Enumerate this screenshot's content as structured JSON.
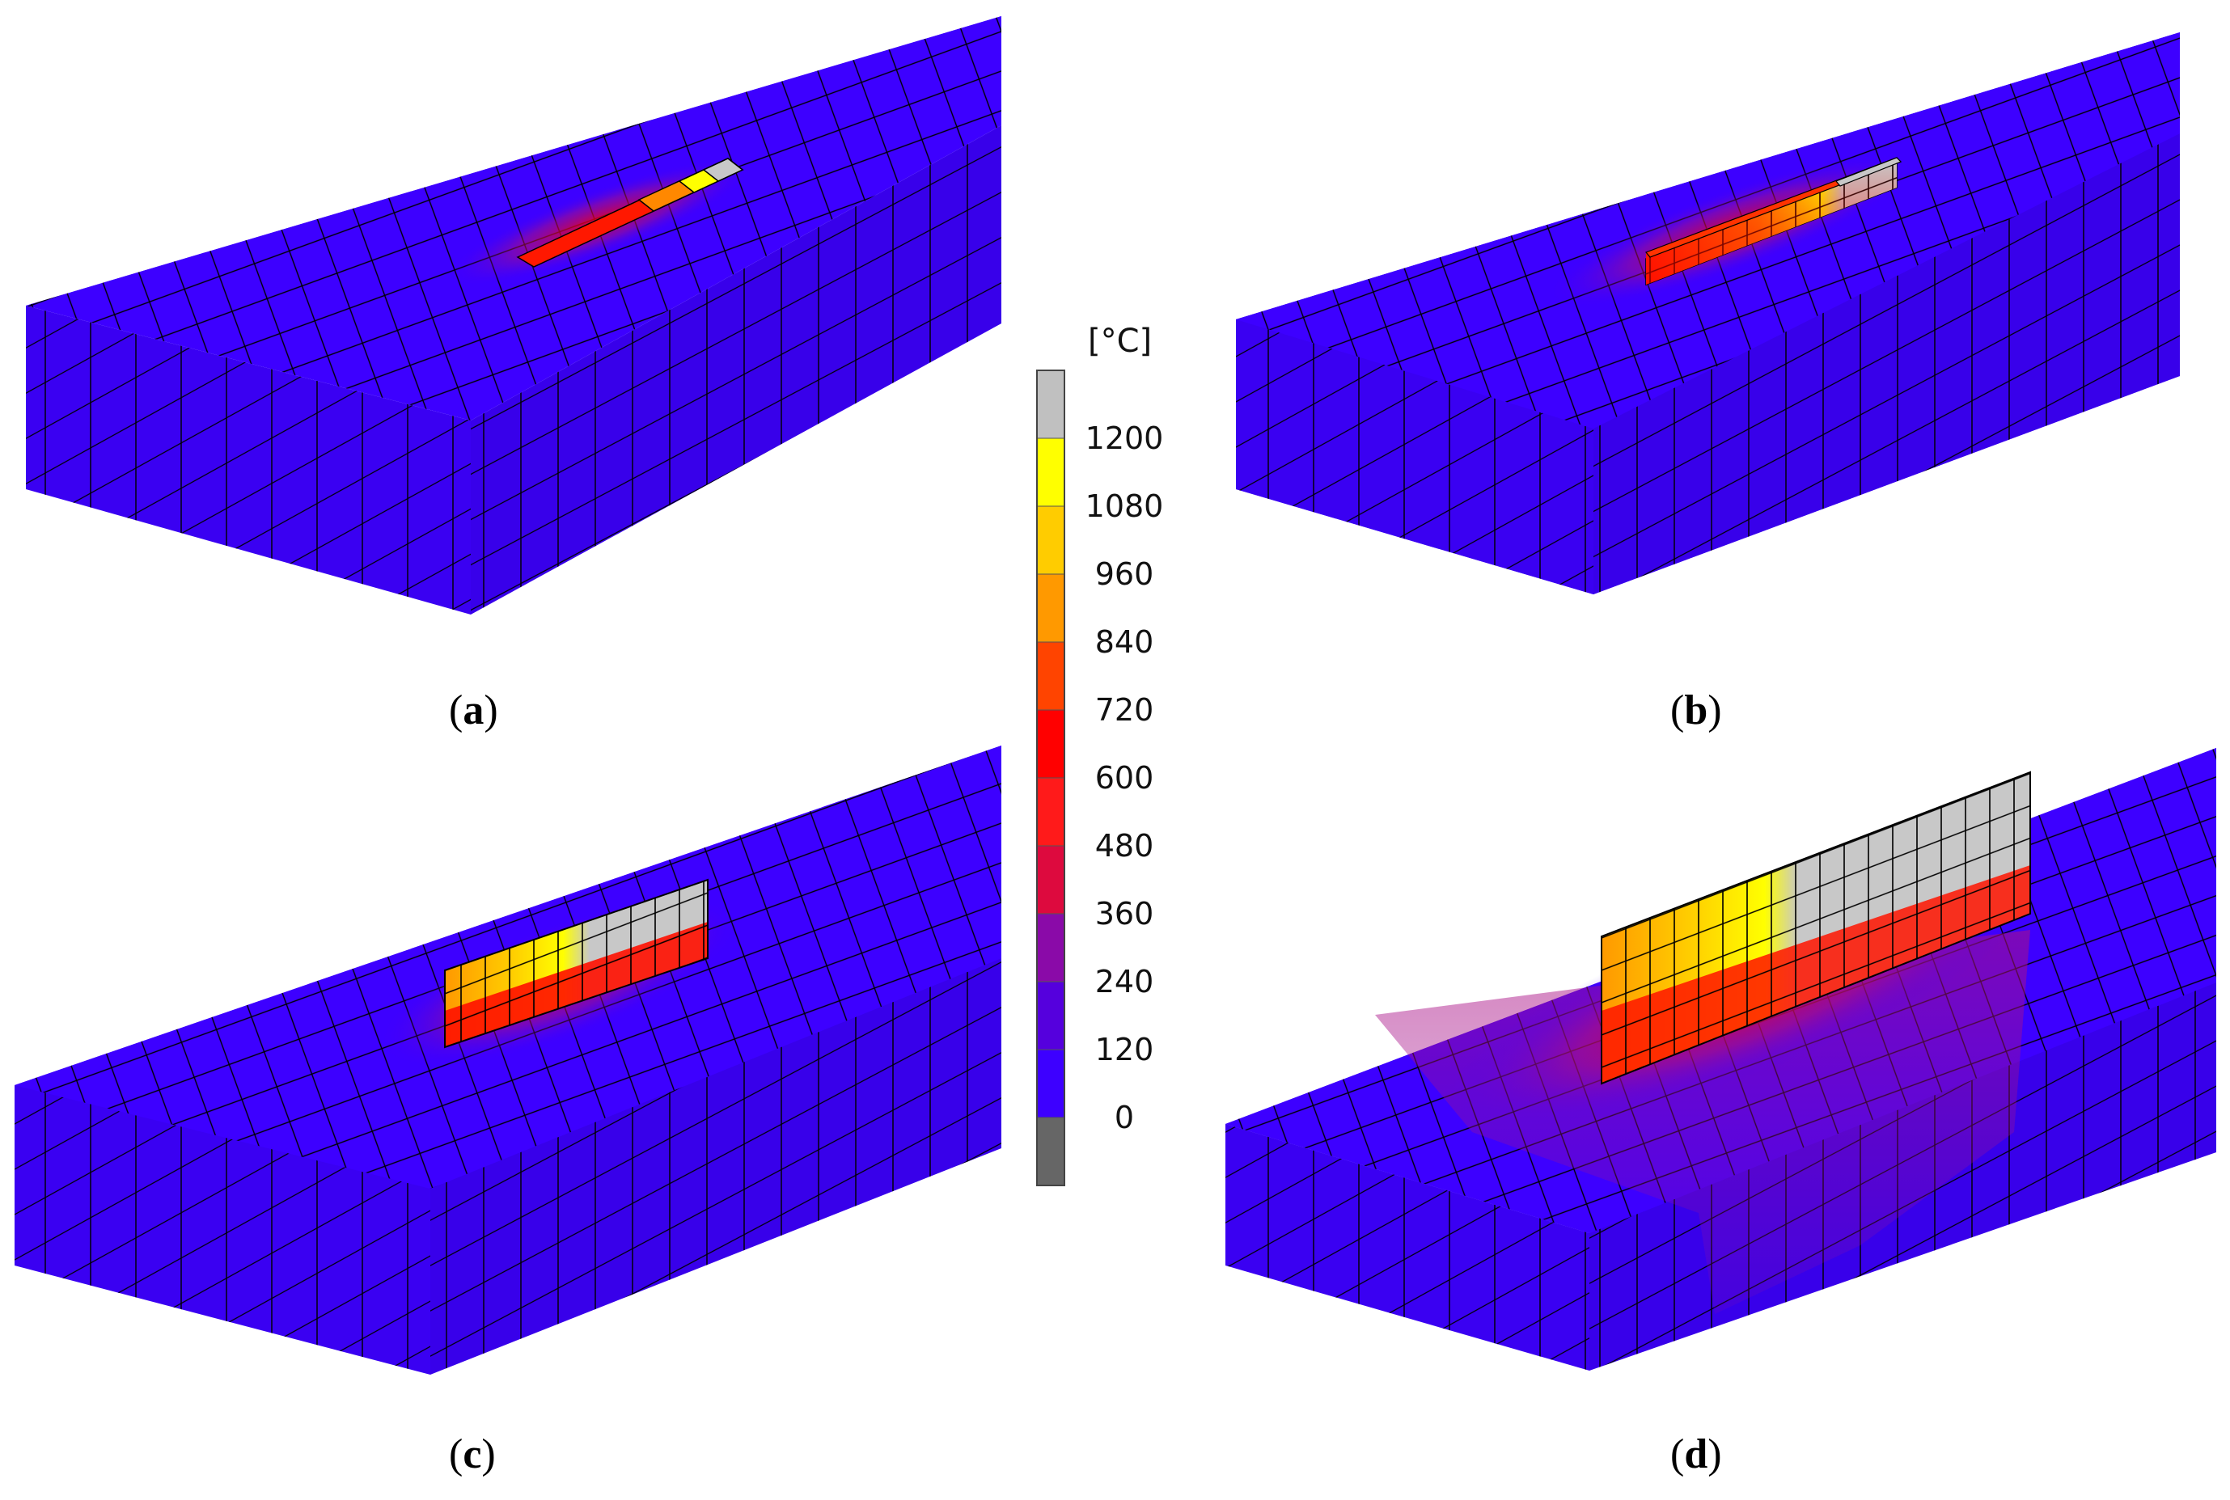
{
  "legend": {
    "unit": "[°C]",
    "ticks": [
      "1200",
      "1080",
      "960",
      "840",
      "720",
      "600",
      "480",
      "360",
      "240",
      "120",
      "0"
    ],
    "colors": [
      "#c0c0c0",
      "#ffff00",
      "#ffcc00",
      "#ff9900",
      "#ff4400",
      "#ff0000",
      "#ff1a1a",
      "#dd0a3e",
      "#8a0aa8",
      "#5500dd",
      "#3d00ff",
      "#666666"
    ]
  },
  "colors": {
    "plate": "#3d00ff",
    "plate_side": "#3a00f2",
    "mesh_line": "#000000",
    "deposit_gray": "#c4c4c4",
    "deposit_yellow": "#ffff00",
    "deposit_orange": "#ff9900",
    "deposit_red": "#ff1a00",
    "heat_purple": "#a0108a"
  },
  "panels": [
    {
      "id": "a",
      "caption": "a",
      "deposit_height": 0.05
    },
    {
      "id": "b",
      "caption": "b",
      "deposit_height": 0.25
    },
    {
      "id": "c",
      "caption": "c",
      "deposit_height": 0.45
    },
    {
      "id": "d",
      "caption": "d",
      "deposit_height": 1.0
    }
  ]
}
